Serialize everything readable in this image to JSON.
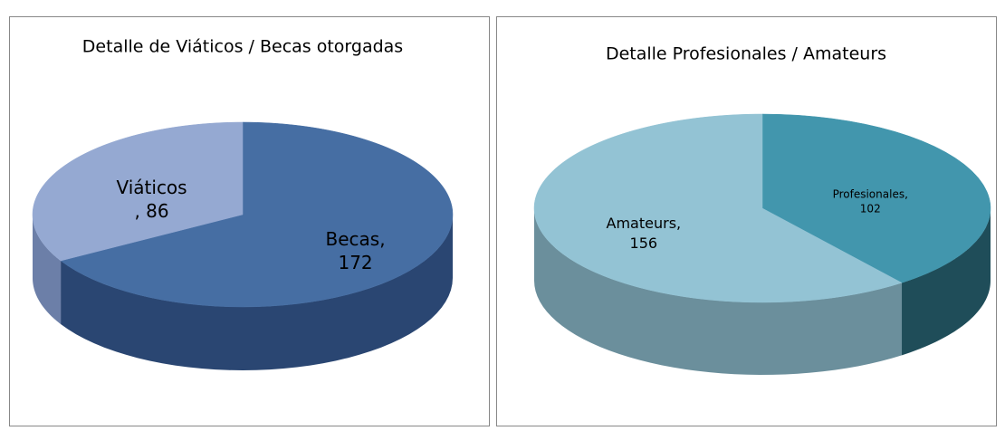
{
  "chart_data": [
    {
      "type": "pie",
      "title": "Detalle de Viáticos / Becas otorgadas",
      "categories": [
        "Becas",
        "Viáticos"
      ],
      "values": [
        172,
        86
      ],
      "value_labels": [
        [
          "Becas,",
          "172"
        ],
        [
          "Viáticos",
          ", 86"
        ]
      ],
      "colors": [
        "#466ea3",
        "#95a9d2"
      ],
      "side_colors": [
        "#2a4672",
        "#6c7fa8"
      ]
    },
    {
      "type": "pie",
      "title": "Detalle Profesionales / Amateurs",
      "categories": [
        "Profesionales",
        "Amateurs"
      ],
      "values": [
        102,
        156
      ],
      "value_labels": [
        [
          "Profesionales,",
          "102"
        ],
        [
          "Amateurs,",
          "156"
        ]
      ],
      "colors": [
        "#4296ad",
        "#93c3d4"
      ],
      "side_colors": [
        "#1f4d59",
        "#6b8f9c"
      ]
    }
  ]
}
